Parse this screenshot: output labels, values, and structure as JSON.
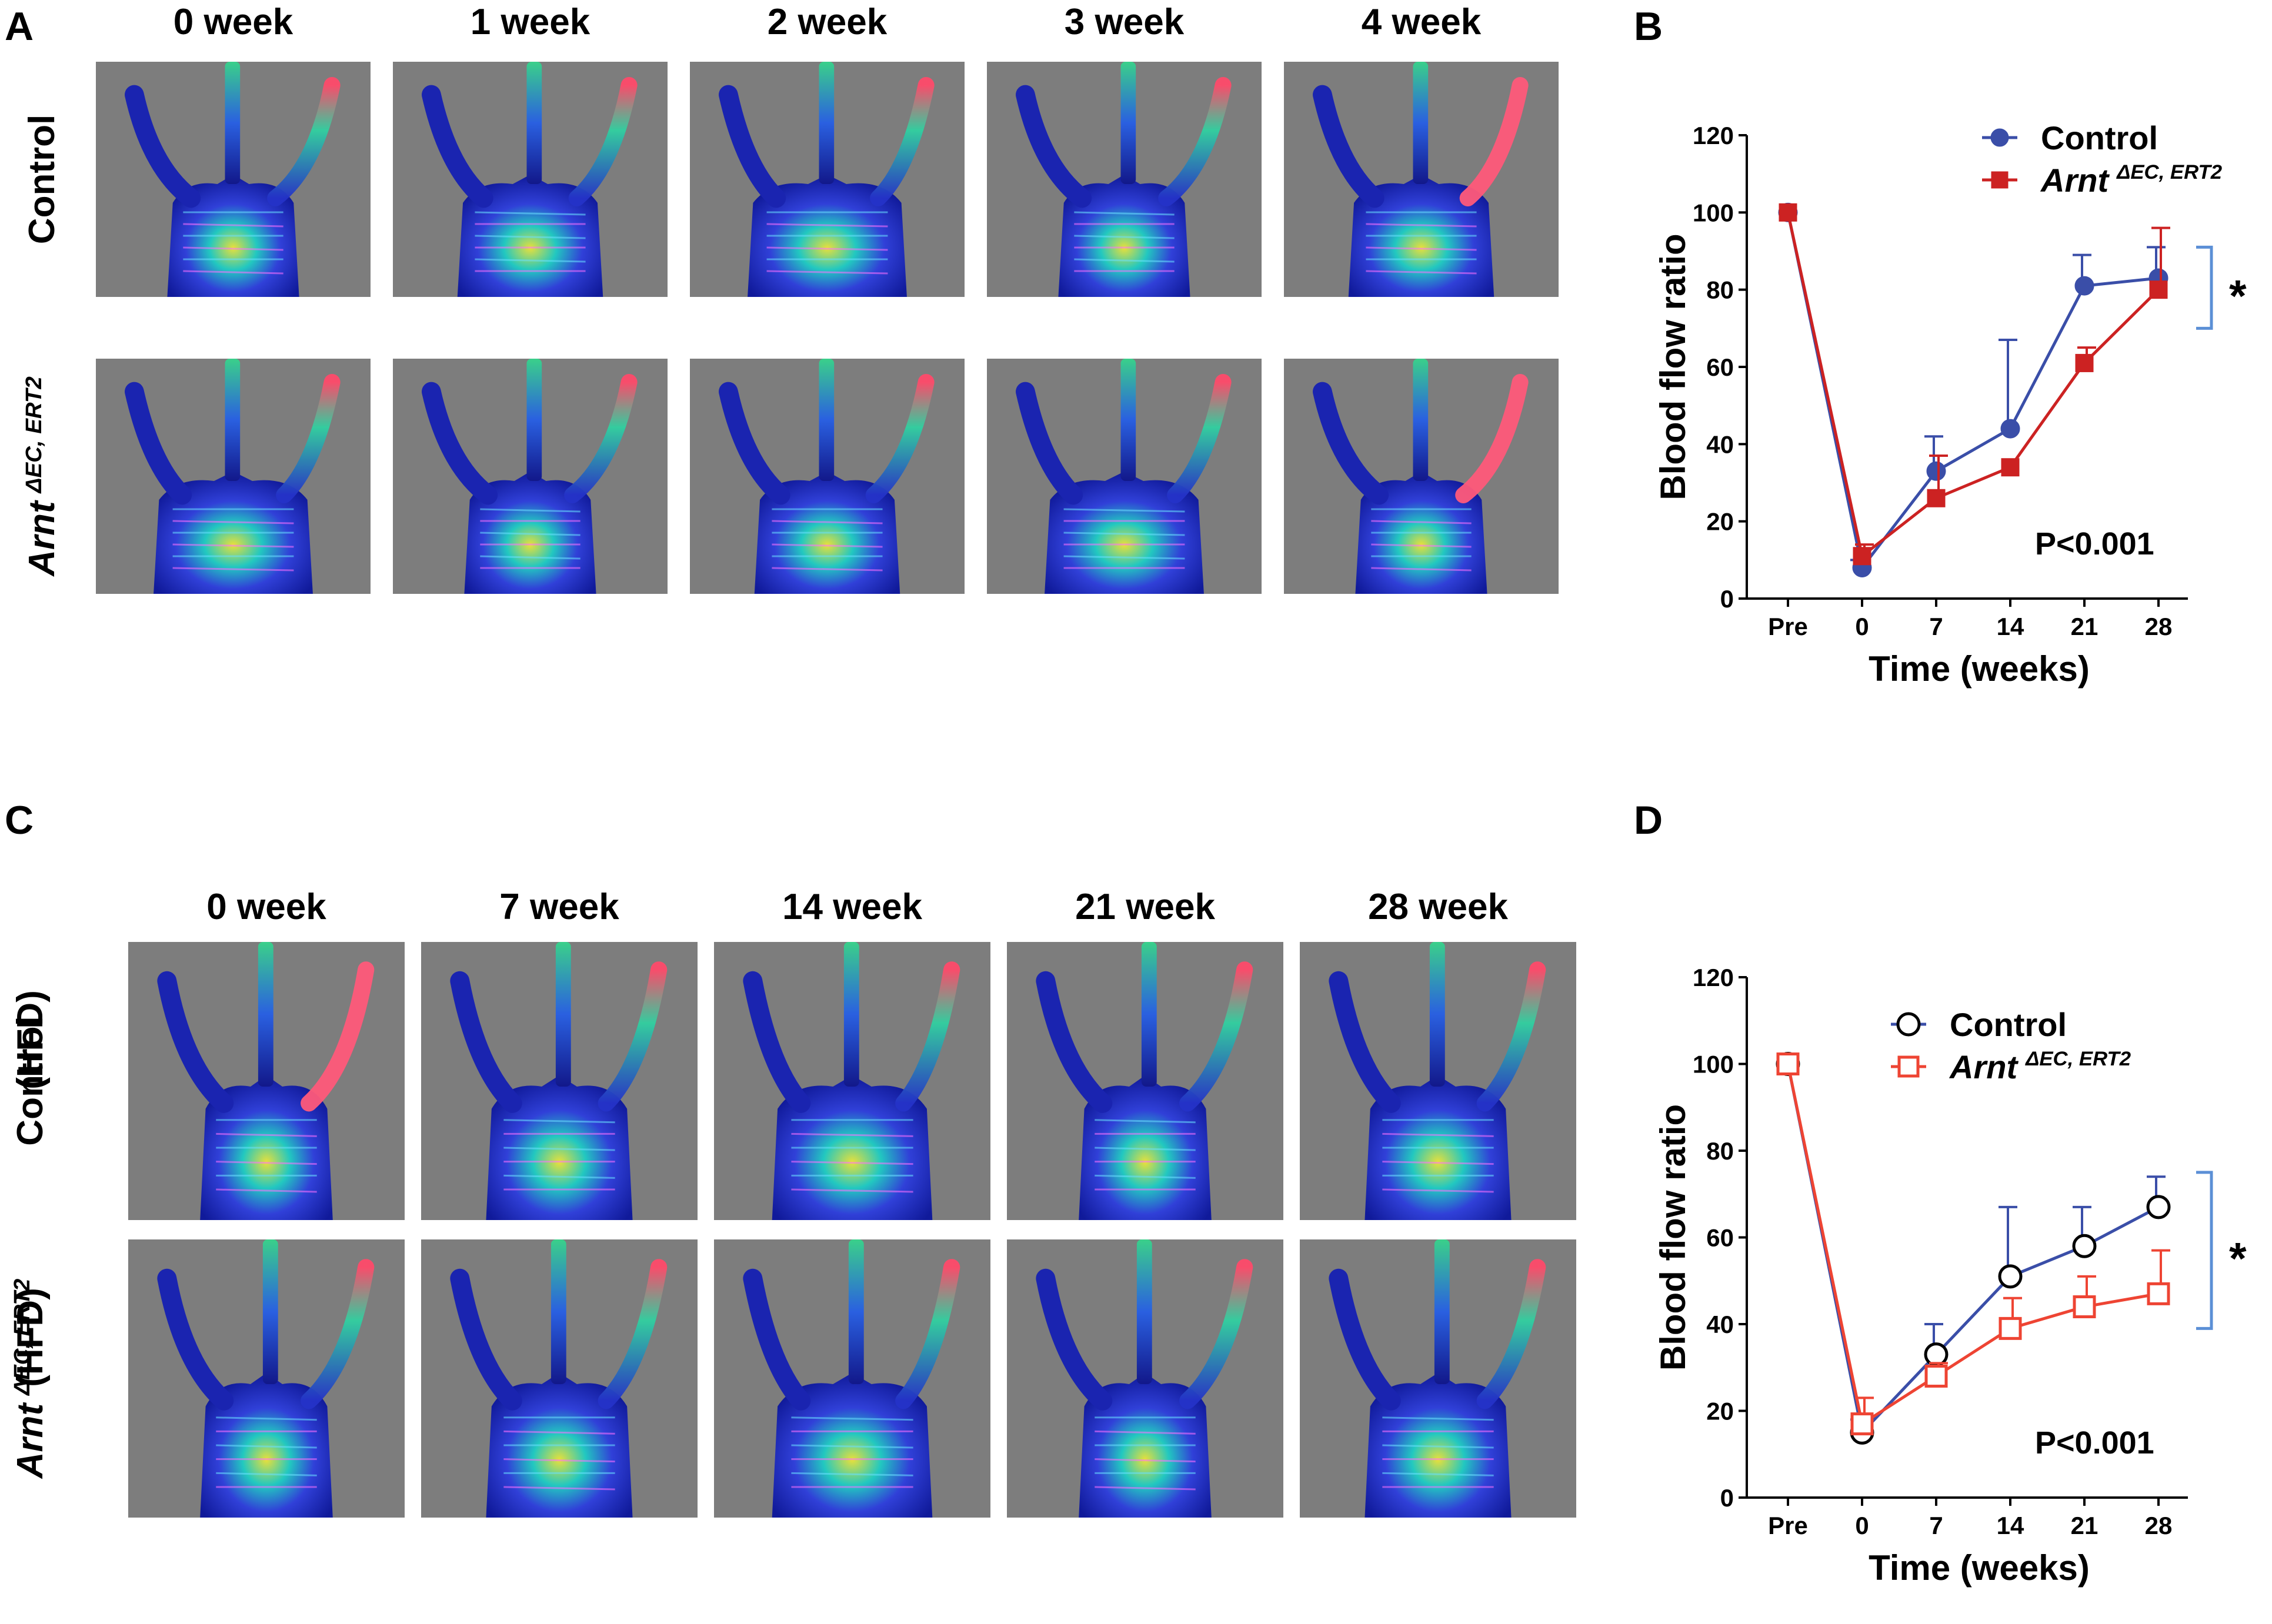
{
  "colors": {
    "control": "#3a4ea8",
    "arnt_b": "#cc2222",
    "arnt_d": "#ee4433",
    "background_gray": "#7d7d7d",
    "bracket": "#5b8fd6"
  },
  "panel_a": {
    "letter": "A",
    "columns": [
      "0 week",
      "1 week",
      "2 week",
      "3 week",
      "4 week"
    ],
    "rows": [
      {
        "label": "Control",
        "sup": ""
      },
      {
        "label": "Arnt",
        "sup": "ΔEC, ERT2"
      }
    ]
  },
  "panel_c": {
    "letter": "C",
    "columns": [
      "0 week",
      "7 week",
      "14 week",
      "21 week",
      "28 week"
    ],
    "rows": [
      {
        "label": "Control",
        "line2": "(HFD)",
        "sup": ""
      },
      {
        "label": "Arnt",
        "line2": "(HFD)",
        "sup": "ΔEC, ERT2"
      }
    ]
  },
  "panel_b": {
    "letter": "B",
    "pvalue": "P<0.001",
    "significance": "*",
    "legend": [
      {
        "name": "Control",
        "sup": ""
      },
      {
        "name": "Arnt",
        "sup": "ΔEC, ERT2"
      }
    ]
  },
  "panel_d": {
    "letter": "D",
    "pvalue": "P<0.001",
    "significance": "*",
    "legend": [
      {
        "name": "Control",
        "sup": ""
      },
      {
        "name": "Arnt",
        "sup": "ΔEC, ERT2"
      }
    ]
  },
  "chart_data": [
    {
      "panel": "B",
      "type": "line",
      "categories": [
        "Pre",
        "0",
        "7",
        "14",
        "21",
        "28"
      ],
      "xlabel": "Time (weeks)",
      "ylabel": "Blood flow ratio",
      "ylim": [
        0,
        120
      ],
      "yticks": [
        0,
        20,
        40,
        60,
        80,
        100,
        120
      ],
      "legend_position": "top-right",
      "series": [
        {
          "name": "Control",
          "marker": "filled-circle",
          "values": [
            100,
            8,
            33,
            44,
            81,
            83
          ],
          "errors": [
            0,
            2,
            9,
            23,
            8,
            8
          ]
        },
        {
          "name": "Arnt ΔEC, ERT2",
          "marker": "filled-square",
          "values": [
            100,
            11,
            26,
            34,
            61,
            80
          ],
          "errors": [
            0,
            3,
            11,
            0,
            4,
            16
          ]
        }
      ]
    },
    {
      "panel": "D",
      "type": "line",
      "categories": [
        "Pre",
        "0",
        "7",
        "14",
        "21",
        "28"
      ],
      "xlabel": "Time (weeks)",
      "ylabel": "Blood flow ratio",
      "ylim": [
        0,
        120
      ],
      "yticks": [
        0,
        20,
        40,
        60,
        80,
        100,
        120
      ],
      "legend_position": "top-right",
      "series": [
        {
          "name": "Control",
          "marker": "open-circle",
          "values": [
            100,
            15,
            33,
            51,
            58,
            67
          ],
          "errors": [
            0,
            3,
            7,
            16,
            9,
            7
          ]
        },
        {
          "name": "Arnt ΔEC, ERT2",
          "marker": "open-square",
          "values": [
            100,
            17,
            28,
            39,
            44,
            47
          ],
          "errors": [
            0,
            6,
            3,
            7,
            7,
            10
          ]
        }
      ]
    }
  ]
}
